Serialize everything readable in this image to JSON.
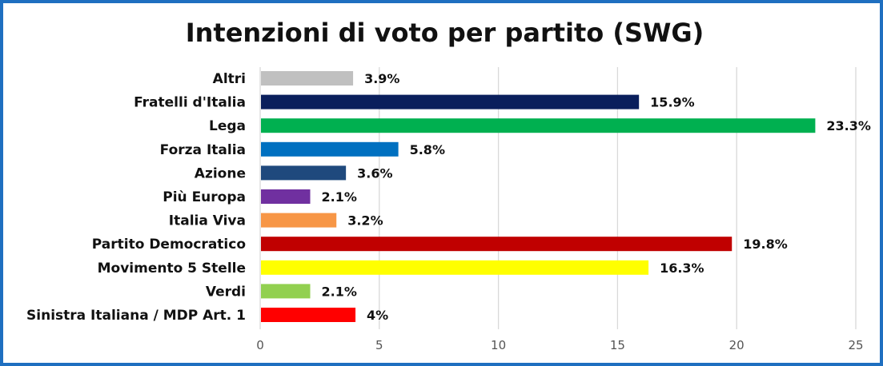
{
  "chart_data": {
    "type": "bar",
    "orientation": "horizontal",
    "title": "Intenzioni di voto per partito (SWG)",
    "xlabel": "",
    "ylabel": "",
    "xlim": [
      0,
      25
    ],
    "x_ticks": [
      0,
      5,
      10,
      15,
      20,
      25
    ],
    "grid": "vertical",
    "categories": [
      "Altri",
      "Fratelli d'Italia",
      "Lega",
      "Forza Italia",
      "Azione",
      "Più Europa",
      "Italia Viva",
      "Partito Democratico",
      "Movimento 5 Stelle",
      "Verdi",
      "Sinistra Italiana / MDP Art. 1"
    ],
    "values": [
      3.9,
      15.9,
      23.3,
      5.8,
      3.6,
      2.1,
      3.2,
      19.8,
      16.3,
      2.1,
      4
    ],
    "data_labels": [
      "3.9%",
      "15.9%",
      "23.3%",
      "5.8%",
      "3.6%",
      "2.1%",
      "3.2%",
      "19.8%",
      "16.3%",
      "2.1%",
      "4%"
    ],
    "colors": [
      "#c0c0c0",
      "#0a1f5c",
      "#00b050",
      "#0070c0",
      "#1f497d",
      "#7030a0",
      "#f79646",
      "#c00000",
      "#ffff00",
      "#92d050",
      "#ff0000"
    ],
    "border_color": "#1f6fc0"
  }
}
